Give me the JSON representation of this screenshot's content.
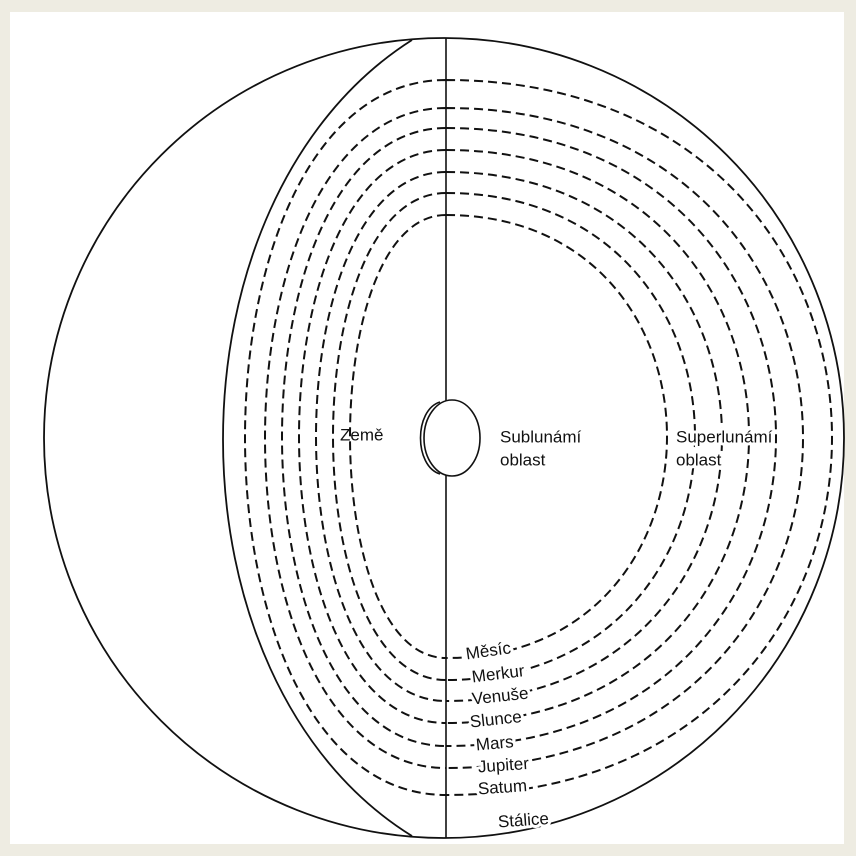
{
  "labels": {
    "earth": "Země",
    "sublunar": [
      "Sublunámí",
      "oblast"
    ],
    "superlunar": [
      "Superlunámí",
      "oblast"
    ]
  },
  "spheres": [
    "Měsíc",
    "Merkur",
    "Venuše",
    "Slunce",
    "Mars",
    "Jupiter",
    "Satum"
  ],
  "fixed_stars": "Stálice"
}
